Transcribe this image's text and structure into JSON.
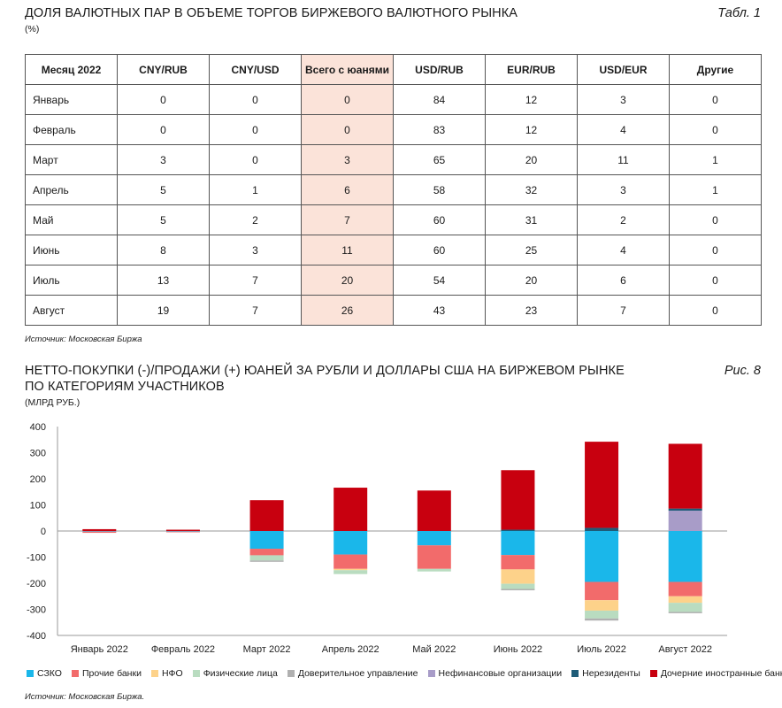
{
  "table": {
    "title": "ДОЛЯ ВАЛЮТНЫХ ПАР В ОБЪЕМЕ ТОРГОВ БИРЖЕВОГО ВАЛЮТНОГО РЫНКА",
    "unit": "(%)",
    "label": "Табл. 1",
    "headers": [
      "Месяц 2022",
      "CNY/RUB",
      "CNY/USD",
      "Всего с юанями",
      "USD/RUB",
      "EUR/RUB",
      "USD/EUR",
      "Другие"
    ],
    "rows": [
      [
        "Январь",
        "0",
        "0",
        "0",
        "84",
        "12",
        "3",
        "0"
      ],
      [
        "Февраль",
        "0",
        "0",
        "0",
        "83",
        "12",
        "4",
        "0"
      ],
      [
        "Март",
        "3",
        "0",
        "3",
        "65",
        "20",
        "11",
        "1"
      ],
      [
        "Апрель",
        "5",
        "1",
        "6",
        "58",
        "32",
        "3",
        "1"
      ],
      [
        "Май",
        "5",
        "2",
        "7",
        "60",
        "31",
        "2",
        "0"
      ],
      [
        "Июнь",
        "8",
        "3",
        "11",
        "60",
        "25",
        "4",
        "0"
      ],
      [
        "Июль",
        "13",
        "7",
        "20",
        "54",
        "20",
        "6",
        "0"
      ],
      [
        "Август",
        "19",
        "7",
        "26",
        "43",
        "23",
        "7",
        "0"
      ]
    ],
    "highlight_color": "#fbe3d9",
    "source": "Источник: Московская Биржа"
  },
  "figure": {
    "title_line1": "НЕТТО-ПОКУПКИ (-)/ПРОДАЖИ (+) ЮАНЕЙ ЗА РУБЛИ И ДОЛЛАРЫ США НА БИРЖЕВОМ РЫНКЕ",
    "title_line2": "ПО КАТЕГОРИЯМ УЧАСТНИКОВ",
    "unit": "(МЛРД РУБ.)",
    "label": "Рис. 8",
    "source": "Источник: Московская Биржа."
  },
  "chart_data": {
    "type": "bar",
    "stacked": true,
    "categories": [
      "Январь 2022",
      "Февраль 2022",
      "Март 2022",
      "Апрель 2022",
      "Май 2022",
      "Июнь 2022",
      "Июль 2022",
      "Август 2022"
    ],
    "ylim": [
      -400,
      400
    ],
    "yticks": [
      400,
      300,
      200,
      100,
      0,
      -100,
      -200,
      -300,
      -400
    ],
    "grid": false,
    "legend_position": "bottom",
    "series": [
      {
        "name": "СЗКО",
        "color": "#1ab7ea",
        "values": [
          -2,
          -2,
          -68,
          -90,
          -55,
          -92,
          -195,
          -195
        ]
      },
      {
        "name": "Прочие банки",
        "color": "#f26b6b",
        "values": [
          -5,
          -3,
          -25,
          -55,
          -90,
          -55,
          -70,
          -55
        ]
      },
      {
        "name": "НФО",
        "color": "#fdd28a",
        "values": [
          0,
          0,
          0,
          -5,
          0,
          -55,
          -40,
          -25
        ]
      },
      {
        "name": "Физические лица",
        "color": "#b9dcc0",
        "values": [
          0,
          0,
          -20,
          -15,
          -10,
          -20,
          -30,
          -35
        ]
      },
      {
        "name": "Доверительное управление",
        "color": "#b0b0b0",
        "values": [
          0,
          0,
          -5,
          0,
          0,
          -5,
          -8,
          -5
        ]
      },
      {
        "name": "Нефинансовые организации",
        "color": "#a89cc8",
        "values": [
          0,
          0,
          0,
          0,
          0,
          0,
          0,
          78
        ]
      },
      {
        "name": "Нерезиденты",
        "color": "#1e5c78",
        "values": [
          0,
          0,
          0,
          0,
          0,
          5,
          12,
          8
        ]
      },
      {
        "name": "Дочерние иностранные банки",
        "color": "#c8000f",
        "values": [
          7,
          5,
          118,
          166,
          155,
          228,
          330,
          248
        ]
      }
    ]
  }
}
